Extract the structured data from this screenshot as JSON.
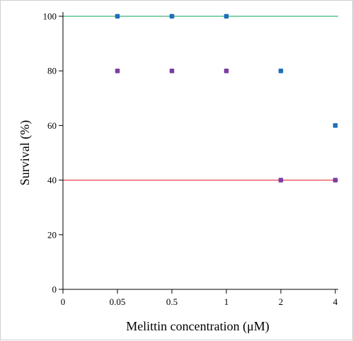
{
  "chart_data": {
    "type": "scatter",
    "title": "",
    "xlabel": "Melittin concentration (μM)",
    "ylabel": "Survival (%)",
    "categories": [
      "0",
      "0.05",
      "0.5",
      "1",
      "2",
      "4"
    ],
    "yticks": [
      "0",
      "20",
      "40",
      "60",
      "80",
      "100"
    ],
    "ylim": [
      0,
      100
    ],
    "grid": false,
    "series": [
      {
        "color": "#1f6fba",
        "points": [
          {
            "x": "0.05",
            "y": 100
          },
          {
            "x": "0.5",
            "y": 100
          },
          {
            "x": "1",
            "y": 100
          },
          {
            "x": "2",
            "y": 80
          },
          {
            "x": "4",
            "y": 60
          }
        ]
      },
      {
        "color": "#7b3fa0",
        "points": [
          {
            "x": "0.05",
            "y": 80
          },
          {
            "x": "0.5",
            "y": 80
          },
          {
            "x": "1",
            "y": 80
          },
          {
            "x": "2",
            "y": 40
          },
          {
            "x": "4",
            "y": 40
          }
        ]
      }
    ],
    "reference_lines": [
      {
        "y": 100,
        "color": "#3cb878"
      },
      {
        "y": 40,
        "color": "#e8424a"
      }
    ]
  }
}
